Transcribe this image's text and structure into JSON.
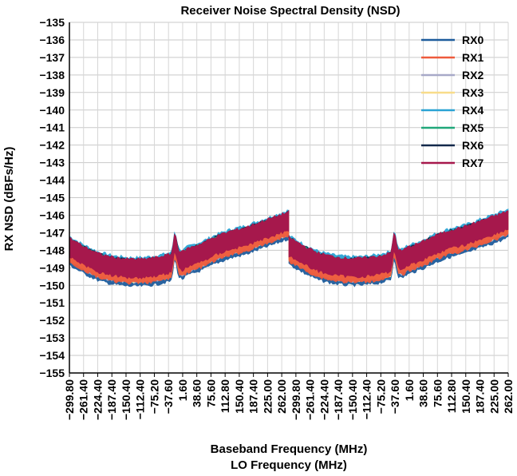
{
  "chart_data": {
    "type": "line",
    "title": "Receiver Noise Spectral Density (NSD)",
    "ylabel": "RX NSD (dBFs/Hz)",
    "xlabel": "Baseband Frequency (MHz)",
    "xlabel2": "LO Frequency (MHz)",
    "ylim": [
      -155,
      -135
    ],
    "yticks": [
      -135,
      -136,
      -137,
      -138,
      -139,
      -140,
      -141,
      -142,
      -143,
      -144,
      -145,
      -146,
      -147,
      -148,
      -149,
      -150,
      -151,
      -152,
      -153,
      -154,
      -155
    ],
    "ytick_labels": [
      "−135",
      "−136",
      "−137",
      "−138",
      "−139",
      "−140",
      "−141",
      "−142",
      "−143",
      "−144",
      "−145",
      "−146",
      "−147",
      "−148",
      "−149",
      "−150",
      "−151",
      "−152",
      "−153",
      "−154",
      "−155"
    ],
    "xtick_labels": [
      "−299.80",
      "−261.40",
      "−224.40",
      "−187.40",
      "−150.40",
      "−112.40",
      "−75.20",
      "−37.60",
      "1.60",
      "38.60",
      "75.60",
      "112.80",
      "150.40",
      "187.40",
      "225.00",
      "262.00",
      "−299.80",
      "−261.40",
      "−224.40",
      "−187.40",
      "−150.40",
      "−112.40",
      "−75.20",
      "−37.60",
      "1.60",
      "38.60",
      "75.60",
      "112.80",
      "150.40",
      "187.40",
      "225.00",
      "262.00"
    ],
    "segment_x": [
      -299.8,
      -261.4,
      -224.4,
      -187.4,
      -150.4,
      -112.4,
      -75.2,
      -37.6,
      1.6,
      38.6,
      75.6,
      112.8,
      150.4,
      187.4,
      225.0,
      262.0
    ],
    "grid": true,
    "legend_position": "top-right",
    "series": [
      {
        "name": "RX0",
        "color": "#1d5c9c"
      },
      {
        "name": "RX1",
        "color": "#ee5a3c"
      },
      {
        "name": "RX2",
        "color": "#a7a9c8"
      },
      {
        "name": "RX3",
        "color": "#f8dc8a"
      },
      {
        "name": "RX4",
        "color": "#2aa3d4"
      },
      {
        "name": "RX5",
        "color": "#20a77a"
      },
      {
        "name": "RX6",
        "color": "#13294b"
      },
      {
        "name": "RX7",
        "color": "#a6184c"
      }
    ],
    "profile": {
      "x": [
        -299.8,
        -261.4,
        -224.4,
        -187.4,
        -150.4,
        -112.4,
        -75.2,
        -37.6,
        -30,
        -20,
        -10,
        1.6,
        38.6,
        75.6,
        112.8,
        150.4,
        187.4,
        225.0,
        262.0
      ],
      "y": [
        -148.0,
        -148.5,
        -148.9,
        -149.1,
        -149.2,
        -149.2,
        -149.1,
        -148.9,
        -147.6,
        -148.7,
        -148.8,
        -148.6,
        -148.3,
        -147.9,
        -147.6,
        -147.4,
        -147.1,
        -146.8,
        -146.5
      ]
    },
    "profile_spread": 0.55
  }
}
